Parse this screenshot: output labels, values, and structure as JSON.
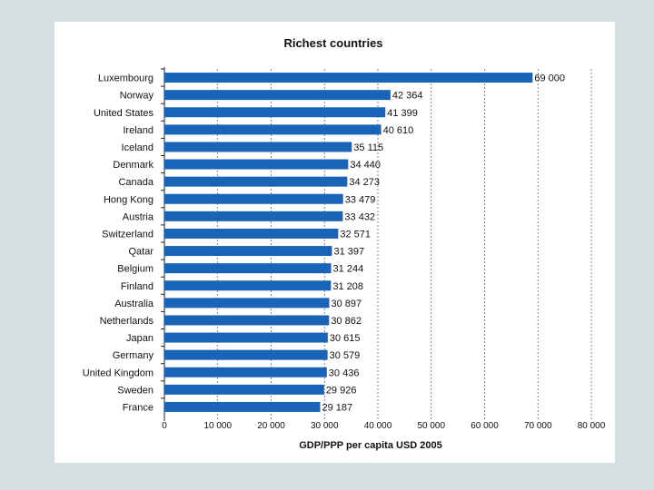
{
  "chart_data": {
    "type": "bar",
    "orientation": "horizontal",
    "title": "Richest countries",
    "xlabel": "GDP/PPP per capita USD 2005",
    "ylabel": "",
    "xlim": [
      0,
      80000
    ],
    "ticks": [
      0,
      10000,
      20000,
      30000,
      40000,
      50000,
      60000,
      70000,
      80000
    ],
    "tick_labels": [
      "0",
      "10 000",
      "20 000",
      "30 000",
      "40 000",
      "50 000",
      "60 000",
      "70 000",
      "80 000"
    ],
    "grid": true,
    "bar_color": "#1a64b8",
    "categories": [
      "Luxembourg",
      "Norway",
      "United States",
      "Ireland",
      "Iceland",
      "Denmark",
      "Canada",
      "Hong Kong",
      "Austria",
      "Switzerland",
      "Qatar",
      "Belgium",
      "Finland",
      "Australia",
      "Netherlands",
      "Japan",
      "Germany",
      "United Kingdom",
      "Sweden",
      "France"
    ],
    "values": [
      69000,
      42364,
      41399,
      40610,
      35115,
      34440,
      34273,
      33479,
      33432,
      32571,
      31397,
      31244,
      31208,
      30897,
      30862,
      30615,
      30579,
      30436,
      29926,
      29187
    ],
    "value_labels": [
      "69 000",
      "42 364",
      "41 399",
      "40 610",
      "35 115",
      "34 440",
      "34 273",
      "33 479",
      "33 432",
      "32 571",
      "31 397",
      "31 244",
      "31 208",
      "30 897",
      "30 862",
      "30 615",
      "30 579",
      "30 436",
      "29 926",
      "29 187"
    ]
  }
}
